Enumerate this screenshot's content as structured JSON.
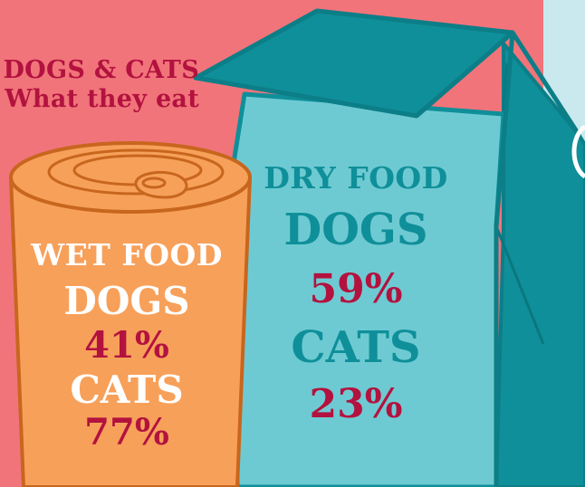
{
  "title": {
    "line1": "DOGS & CATS",
    "line2": "What they eat"
  },
  "wet_food": {
    "heading": "WET FOOD",
    "dogs_label": "DOGS",
    "dogs_value": "41%",
    "cats_label": "CATS",
    "cats_value": "77%"
  },
  "dry_food": {
    "heading": "DRY FOOD",
    "dogs_label": "DOGS",
    "dogs_value": "59%",
    "cats_label": "CATS",
    "cats_value": "23%"
  },
  "colors": {
    "background": "#f1747a",
    "title_text": "#b3123f",
    "can_body": "#f7a05a",
    "can_outline": "#c8661e",
    "bag_body": "#6ecad2",
    "bag_dark": "#0f8f99",
    "side_panel": "#c9e9ee",
    "percent_text": "#b3123f"
  }
}
